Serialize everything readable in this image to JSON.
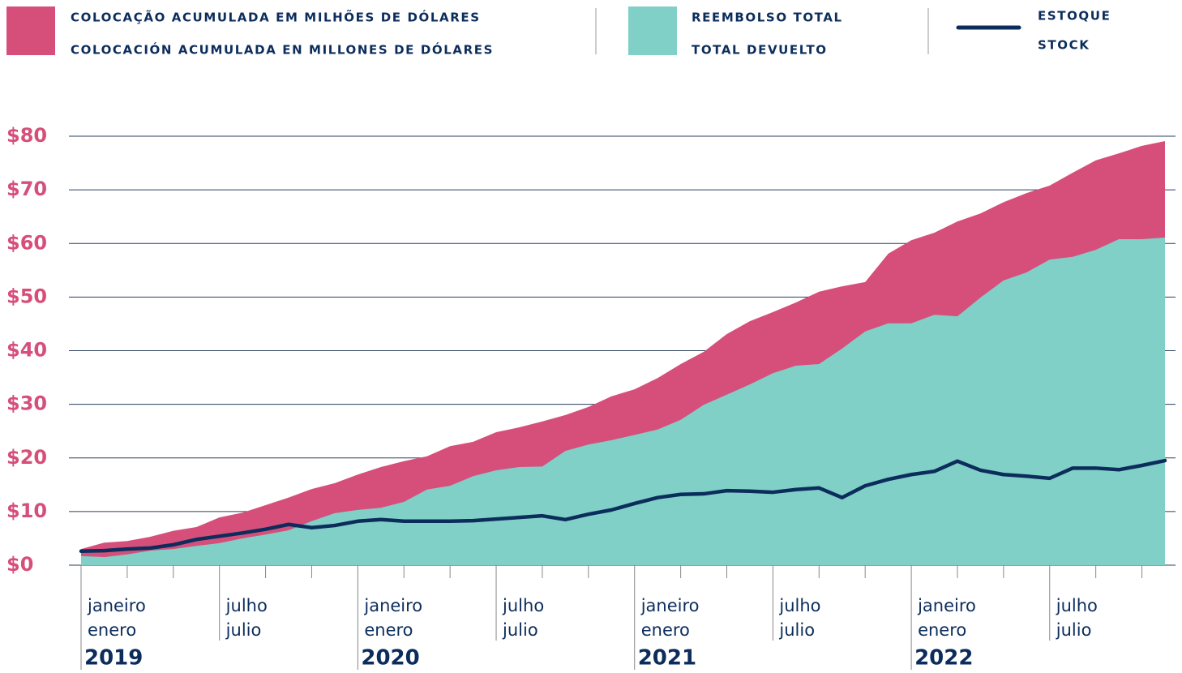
{
  "chart_data": {
    "type": "area",
    "categories": [
      {
        "pt": "janeiro",
        "es": "enero",
        "year": "2019"
      },
      null,
      null,
      null,
      null,
      null,
      {
        "pt": "julho",
        "es": "julio"
      },
      null,
      null,
      null,
      null,
      null,
      {
        "pt": "janeiro",
        "es": "enero",
        "year": "2020"
      },
      null,
      null,
      null,
      null,
      null,
      {
        "pt": "julho",
        "es": "julio"
      },
      null,
      null,
      null,
      null,
      null,
      {
        "pt": "janeiro",
        "es": "enero",
        "year": "2021"
      },
      null,
      null,
      null,
      null,
      null,
      {
        "pt": "julho",
        "es": "julio"
      },
      null,
      null,
      null,
      null,
      null,
      {
        "pt": "janeiro",
        "es": "enero",
        "year": "2022"
      },
      null,
      null,
      null,
      null,
      null,
      {
        "pt": "julho",
        "es": "julio"
      },
      null,
      null,
      null,
      null,
      null
    ],
    "series": [
      {
        "name": "COLOCAÇÃO ACUMULADA EM MILHÕES DE DÓLARES",
        "name_es": "COLOCACIÓN ACUMULADA EN MILLONES DE DÓLARES",
        "color": "#d64f7b",
        "kind": "area",
        "values": [
          3.0,
          4.2,
          4.5,
          5.3,
          6.4,
          7.1,
          8.9,
          9.8,
          11.2,
          12.6,
          14.2,
          15.3,
          16.9,
          18.3,
          19.4,
          20.3,
          22.2,
          23.0,
          24.8,
          25.7,
          26.8,
          28.0,
          29.5,
          31.5,
          32.8,
          34.9,
          37.5,
          39.8,
          43.1,
          45.5,
          47.2,
          49.0,
          51.0,
          52.0,
          52.8,
          58.1,
          60.6,
          62.0,
          64.1,
          65.6,
          67.7,
          69.4,
          70.8,
          73.2,
          75.5,
          76.8,
          78.2,
          79.1
        ]
      },
      {
        "name": "REEMBOLSO TOTAL",
        "name_es": "TOTAL DEVUELTO",
        "color": "#80d0c7",
        "kind": "area",
        "values": [
          1.7,
          1.5,
          2.0,
          2.7,
          3.0,
          3.6,
          4.1,
          5.0,
          5.7,
          6.5,
          8.2,
          9.7,
          10.3,
          10.7,
          11.8,
          14.1,
          14.8,
          16.6,
          17.7,
          18.3,
          18.4,
          21.3,
          22.5,
          23.3,
          24.3,
          25.3,
          27.1,
          29.9,
          31.8,
          33.7,
          35.8,
          37.2,
          37.5,
          40.4,
          43.6,
          45.1,
          45.1,
          46.7,
          46.4,
          49.9,
          53.1,
          54.6,
          57.0,
          57.5,
          58.8,
          60.8,
          60.8,
          61.1
        ]
      },
      {
        "name": "ESTOQUE",
        "name_es": "STOCK",
        "color": "#0c2d5c",
        "kind": "line",
        "values": [
          2.6,
          2.7,
          3.0,
          3.2,
          3.8,
          4.8,
          5.4,
          6.0,
          6.7,
          7.6,
          7.0,
          7.4,
          8.2,
          8.5,
          8.2,
          8.2,
          8.2,
          8.3,
          8.6,
          8.9,
          9.2,
          8.5,
          9.5,
          10.3,
          11.5,
          12.6,
          13.2,
          13.3,
          13.9,
          13.8,
          13.6,
          14.1,
          14.4,
          12.6,
          14.8,
          16.0,
          16.9,
          17.5,
          19.4,
          17.7,
          16.9,
          16.6,
          16.2,
          18.1,
          18.1,
          17.8,
          18.6,
          19.5
        ]
      }
    ],
    "ylim": [
      0,
      80
    ],
    "yticks": [
      {
        "value": 0,
        "label": "$0"
      },
      {
        "value": 10,
        "label": "$10"
      },
      {
        "value": 20,
        "label": "$20"
      },
      {
        "value": 30,
        "label": "$30"
      },
      {
        "value": 40,
        "label": "$40"
      },
      {
        "value": 50,
        "label": "$50"
      },
      {
        "value": 60,
        "label": "$60"
      },
      {
        "value": 70,
        "label": "$70"
      },
      {
        "value": 80,
        "label": "$80"
      }
    ],
    "grid": true
  }
}
